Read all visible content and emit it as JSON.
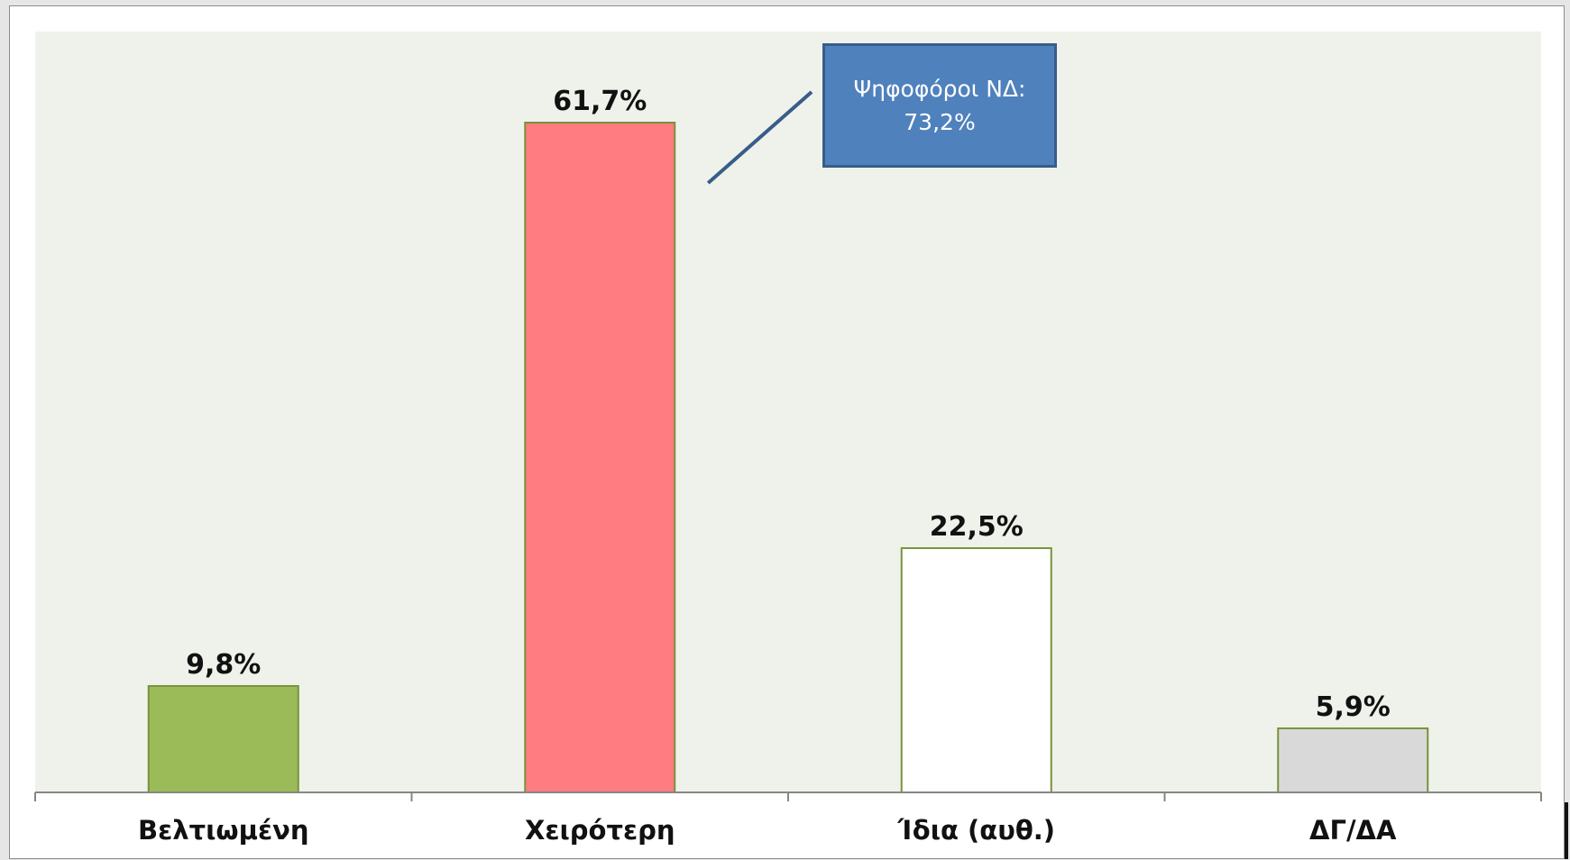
{
  "chart_data": {
    "type": "bar",
    "categories": [
      "Βελτιωμένη",
      "Χειρότερη",
      "Ίδια (αυθ.)",
      "ΔΓ/ΔΑ"
    ],
    "values": [
      9.8,
      61.7,
      22.5,
      5.9
    ],
    "data_labels": [
      "9,8%",
      "61,7%",
      "22,5%",
      "5,9%"
    ],
    "bar_colors": [
      "#9bbb59",
      "#ff7c80",
      "#ffffff",
      "#d9d9d9"
    ],
    "bar_edge_color": "#77933c",
    "plot_background": "#eff2ea",
    "ylim": [
      0,
      70
    ],
    "grid": false,
    "legend": "none",
    "annotation": {
      "line1": "Ψηφοφόροι ΝΔ:",
      "line2": "73,2%",
      "target_category": "Χειρότερη",
      "fill": "#4f81bd",
      "border": "#385d8a"
    }
  }
}
